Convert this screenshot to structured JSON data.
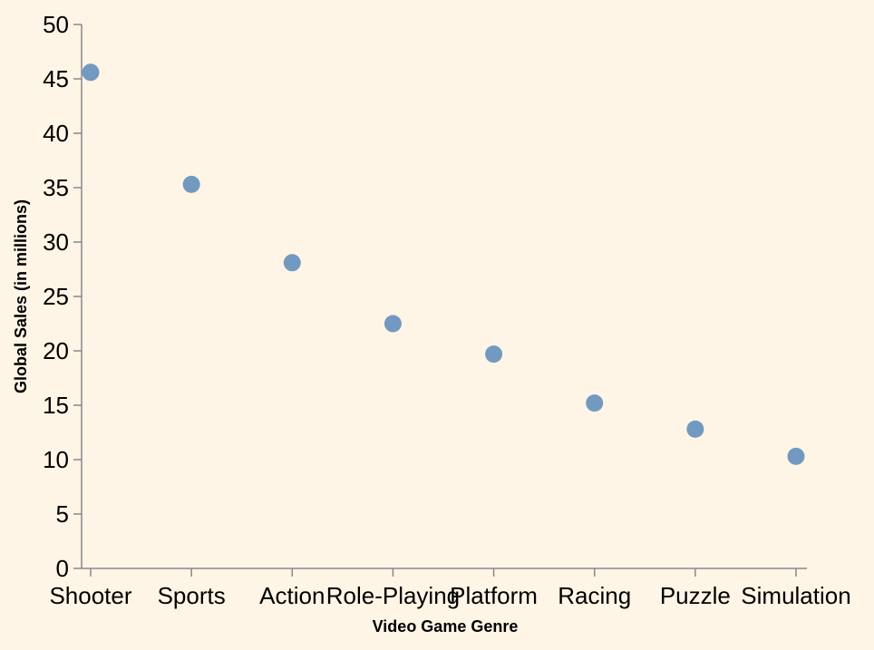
{
  "chart_data": {
    "type": "scatter",
    "categories": [
      "Shooter",
      "Sports",
      "Action",
      "Role-Playing",
      "Platform",
      "Racing",
      "Puzzle",
      "Simulation"
    ],
    "series": [
      {
        "values": [
          45.6,
          35.3,
          28.1,
          22.5,
          19.7,
          15.2,
          12.8,
          10.3
        ],
        "color": "#6A95BE"
      }
    ],
    "xlabel": "Video Game Genre",
    "ylabel": "Global Sales (in millions)",
    "ylim": [
      0,
      50
    ],
    "yticks": [
      0,
      5,
      10,
      15,
      20,
      25,
      30,
      35,
      40,
      45,
      50
    ],
    "grid": false,
    "background": "#FFF5E6",
    "axis_color": "#888888"
  }
}
